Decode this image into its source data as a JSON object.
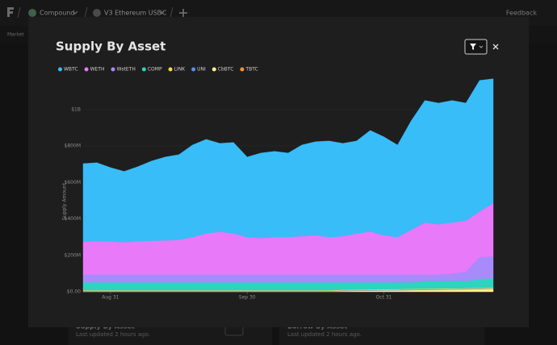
{
  "nav": {
    "protocol": "Compound",
    "market": "V3 Ethereum USDC",
    "feedback": "Feedback",
    "tab": "Market"
  },
  "cards": [
    {
      "title": "Supply By Asset",
      "updated": "Last updated 2 hours ago."
    },
    {
      "title": "Borrow By Asset",
      "updated": "Last updated 2 hours ago."
    }
  ],
  "chart_data": {
    "type": "area",
    "stacked": true,
    "title": "Supply By Asset",
    "y_label": "Supply Amount",
    "categories": [
      null,
      null,
      "Aug 31",
      null,
      null,
      null,
      null,
      null,
      null,
      null,
      null,
      null,
      "Sep 30",
      null,
      null,
      null,
      null,
      null,
      null,
      null,
      null,
      null,
      "Oct 31",
      null,
      null,
      null,
      null,
      null,
      null,
      null,
      null
    ],
    "series": [
      {
        "name": "WBTC",
        "color": "#38bdf8",
        "values": [
          429,
          430,
          405,
          388,
          408,
          437,
          457,
          467,
          505,
          516,
          484,
          499,
          439,
          466,
          470,
          461,
          500,
          513,
          527,
          509,
          507,
          555,
          540,
          505,
          598,
          669,
          665,
          669,
          645,
          719,
          681
        ]
      },
      {
        "name": "WETH",
        "color": "#e879f9",
        "values": [
          179,
          183,
          181,
          177,
          183,
          185,
          187,
          190,
          205,
          225,
          235,
          225,
          205,
          200,
          205,
          205,
          210,
          215,
          205,
          210,
          225,
          235,
          215,
          205,
          245,
          285,
          275,
          280,
          280,
          250,
          292
        ]
      },
      {
        "name": "WstETH",
        "color": "#a78bfa",
        "values": [
          43,
          43,
          43,
          43,
          43,
          43,
          43,
          43,
          43,
          43,
          43,
          43,
          43,
          43,
          43,
          43,
          43,
          43,
          43,
          43,
          43,
          43,
          43,
          43,
          43,
          35,
          35,
          40,
          50,
          120,
          120
        ]
      },
      {
        "name": "COMP",
        "color": "#2dd4bf",
        "values": [
          44,
          44,
          44,
          44,
          44,
          44,
          44,
          44,
          44,
          44,
          44,
          44,
          44,
          44,
          44,
          44,
          44,
          44,
          44,
          41,
          40,
          39,
          38,
          37,
          36,
          43,
          42,
          41,
          40,
          48,
          52
        ]
      },
      {
        "name": "LINK",
        "color": "#fcd34d",
        "values": [
          4,
          4,
          4,
          4,
          4,
          4,
          4,
          4,
          4,
          4,
          4,
          4,
          4,
          4,
          4,
          4,
          4,
          4,
          4,
          4,
          4,
          4,
          4,
          4,
          4,
          4,
          4,
          4,
          4,
          4,
          4
        ]
      },
      {
        "name": "UNI",
        "color": "#5b8def",
        "values": [
          3,
          3,
          3,
          3,
          3,
          3,
          3,
          3,
          3,
          3,
          3,
          3,
          3,
          3,
          3,
          3,
          3,
          3,
          3,
          3,
          3,
          3,
          3,
          3,
          3,
          3,
          3,
          3,
          3,
          3,
          3
        ]
      },
      {
        "name": "CbBTC",
        "color": "#fef08a",
        "values": [
          0,
          0,
          0,
          0,
          0,
          0,
          0,
          0,
          0,
          0,
          0,
          0,
          0,
          0,
          0,
          0,
          0,
          0,
          0,
          3,
          4,
          5,
          6,
          7,
          8,
          9,
          10,
          11,
          12,
          14,
          15
        ]
      },
      {
        "name": "TBTC",
        "color": "#fb923c",
        "values": [
          1,
          1,
          1,
          1,
          1,
          1,
          1,
          1,
          1,
          1,
          1,
          1,
          1,
          1,
          1,
          1,
          1,
          1,
          1,
          1,
          1,
          1,
          1,
          1,
          1,
          1,
          1,
          1,
          1,
          1,
          1
        ]
      }
    ],
    "ylim": [
      0,
      1200
    ],
    "yticks": [
      {
        "value": 0,
        "label": "$0.00"
      },
      {
        "value": 200,
        "label": "$200M"
      },
      {
        "value": 400,
        "label": "$400M"
      },
      {
        "value": 600,
        "label": "$600M"
      },
      {
        "value": 800,
        "label": "$800M"
      },
      {
        "value": 1000,
        "label": "$1B"
      }
    ],
    "grid": true
  }
}
